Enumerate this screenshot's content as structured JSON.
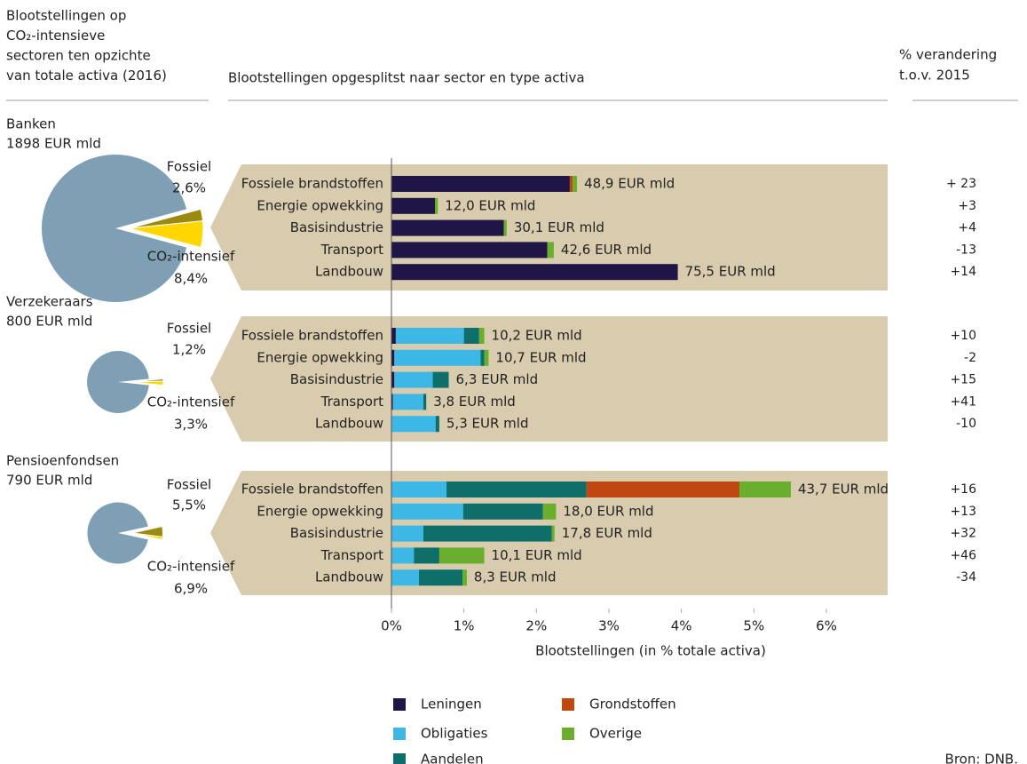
{
  "chart_data": {
    "type": "bar",
    "left_header": [
      "Blootstellingen op",
      "CO₂-intensieve",
      "sectoren ten opzichte",
      "van totale activa (2016)"
    ],
    "middle_header": "Blootstellingen opgesplitst naar sector en type activa",
    "right_header": [
      "% verandering",
      "t.o.v. 2015"
    ],
    "xlabel": "Blootstellingen (in % totale activa)",
    "xlim": [
      0,
      6
    ],
    "xticks": [
      {
        "value": 0,
        "label": "0%"
      },
      {
        "value": 1,
        "label": "1%"
      },
      {
        "value": 2,
        "label": "2%"
      },
      {
        "value": 3,
        "label": "3%"
      },
      {
        "value": 4,
        "label": "4%"
      },
      {
        "value": 5,
        "label": "5%"
      },
      {
        "value": 6,
        "label": "6%"
      }
    ],
    "series": [
      {
        "name": "Leningen",
        "color": "#1f1646"
      },
      {
        "name": "Obligaties",
        "color": "#3db8e6"
      },
      {
        "name": "Aandelen",
        "color": "#0e6e6a"
      },
      {
        "name": "Grondstoffen",
        "color": "#c0470f"
      },
      {
        "name": "Overige",
        "color": "#6aae2e"
      }
    ],
    "pie_colors": {
      "rest": "#7f9fb5",
      "fossil": "#9a8a10",
      "co2": "#ffd700"
    },
    "fossil_name": "Fossiel",
    "co2_name": "CO₂-intensief",
    "source": "Bron: DNB.",
    "groups": [
      {
        "name": "Banken",
        "total": 1898,
        "total_label": "1898 EUR mld",
        "fossil": 2.6,
        "fossil_label": "2,6%",
        "co2": 8.4,
        "co2_label": "8,4%",
        "categories": [
          "Fossiele brandstoffen",
          "Energie opwekking",
          "Basisindustrie",
          "Transport",
          "Landbouw"
        ],
        "values": [
          [
            2.46,
            0.6,
            1.55,
            2.15,
            3.95
          ],
          [
            0,
            0,
            0,
            0,
            0
          ],
          [
            0,
            0,
            0,
            0,
            0
          ],
          [
            0.04,
            0,
            0,
            0,
            0
          ],
          [
            0.06,
            0.04,
            0.04,
            0.09,
            0
          ]
        ],
        "amount_labels": [
          "48,9 EUR mld",
          "12,0 EUR mld",
          "30,1 EUR mld",
          "42,6 EUR mld",
          "75,5 EUR mld"
        ],
        "changes": [
          23,
          3,
          4,
          -13,
          14
        ],
        "change_labels": [
          "+ 23",
          "+3",
          "+4",
          "-13",
          "+14"
        ]
      },
      {
        "name": "Verzekeraars",
        "total": 800,
        "total_label": "800 EUR mld",
        "fossil": 1.2,
        "fossil_label": "1,2%",
        "co2": 3.3,
        "co2_label": "3,3%",
        "categories": [
          "Fossiele brandstoffen",
          "Energie opwekking",
          "Basisindustrie",
          "Transport",
          "Landbouw"
        ],
        "values": [
          [
            0.06,
            0.04,
            0.04,
            0.02,
            0
          ],
          [
            0.94,
            1.19,
            0.53,
            0.42,
            0.61
          ],
          [
            0.21,
            0.05,
            0.22,
            0.04,
            0.05
          ],
          [
            0,
            0,
            0,
            0,
            0
          ],
          [
            0.07,
            0.06,
            0,
            0,
            0
          ]
        ],
        "amount_labels": [
          "10,2 EUR mld",
          "10,7 EUR mld",
          "6,3 EUR mld",
          "3,8 EUR mld",
          "5,3 EUR mld"
        ],
        "changes": [
          10,
          -2,
          15,
          41,
          -10
        ],
        "change_labels": [
          "+10",
          "-2",
          "+15",
          "+41",
          "-10"
        ]
      },
      {
        "name": "Pensioenfondsen",
        "total": 790,
        "total_label": "790 EUR mld",
        "fossil": 5.5,
        "fossil_label": "5,5%",
        "co2": 6.9,
        "co2_label": "6,9%",
        "categories": [
          "Fossiele brandstoffen",
          "Energie opwekking",
          "Basisindustrie",
          "Transport",
          "Landbouw"
        ],
        "values": [
          [
            0,
            0,
            0,
            0,
            0
          ],
          [
            0.76,
            0.99,
            0.44,
            0.31,
            0.38
          ],
          [
            1.93,
            1.1,
            1.77,
            0.35,
            0.6
          ],
          [
            2.11,
            0,
            0,
            0,
            0
          ],
          [
            0.71,
            0.18,
            0.04,
            0.62,
            0.06
          ]
        ],
        "amount_labels": [
          "43,7 EUR mld",
          "18,0 EUR mld",
          "17,8 EUR mld",
          "10,1 EUR mld",
          "8,3 EUR mld"
        ],
        "changes": [
          16,
          13,
          32,
          46,
          -34
        ],
        "change_labels": [
          "+16",
          "+13",
          "+32",
          "+46",
          "-34"
        ]
      }
    ]
  }
}
